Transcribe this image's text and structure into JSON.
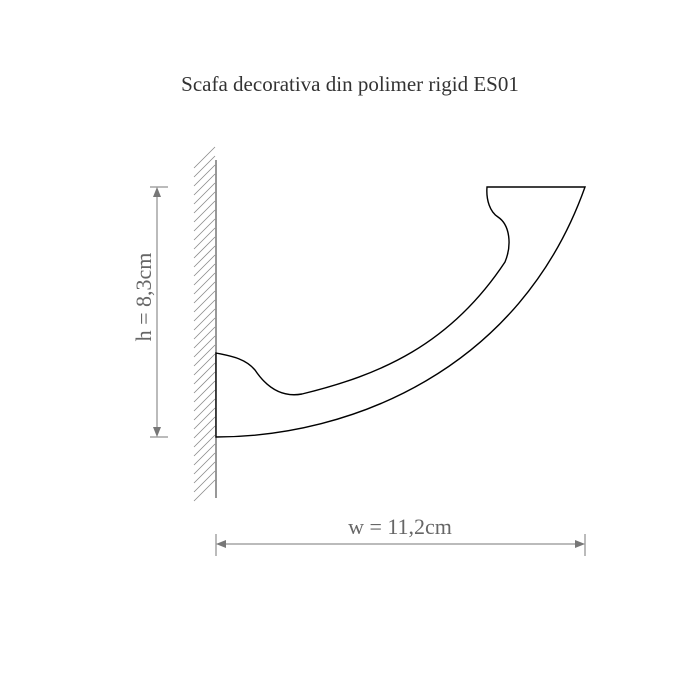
{
  "title": "Scafa decorativa din polimer rigid ES01",
  "dimensions": {
    "height_label": "h = 8,3cm",
    "width_label": "w = 11,2cm"
  },
  "colors": {
    "profile": "#000000",
    "dimension": "#777777",
    "hatch": "#888888"
  }
}
